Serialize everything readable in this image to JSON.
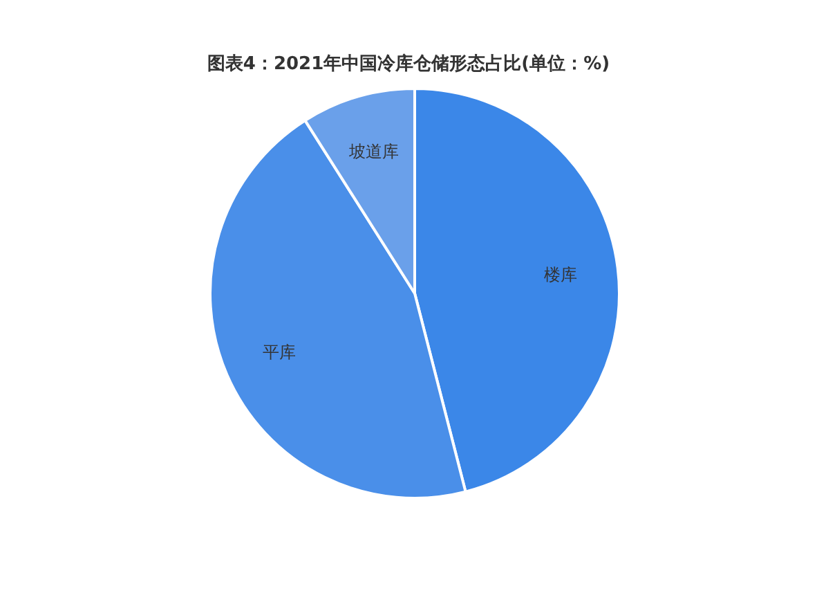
{
  "chart_data": {
    "type": "pie",
    "title": "图表4：2021年中国冷库仓储形态占比(单位：%)",
    "categories": [
      "楼库",
      "平库",
      "坡道库"
    ],
    "values": [
      46,
      45,
      9
    ],
    "colors": [
      "#3b87e8",
      "#4a8fe9",
      "#6aa0ea"
    ]
  }
}
